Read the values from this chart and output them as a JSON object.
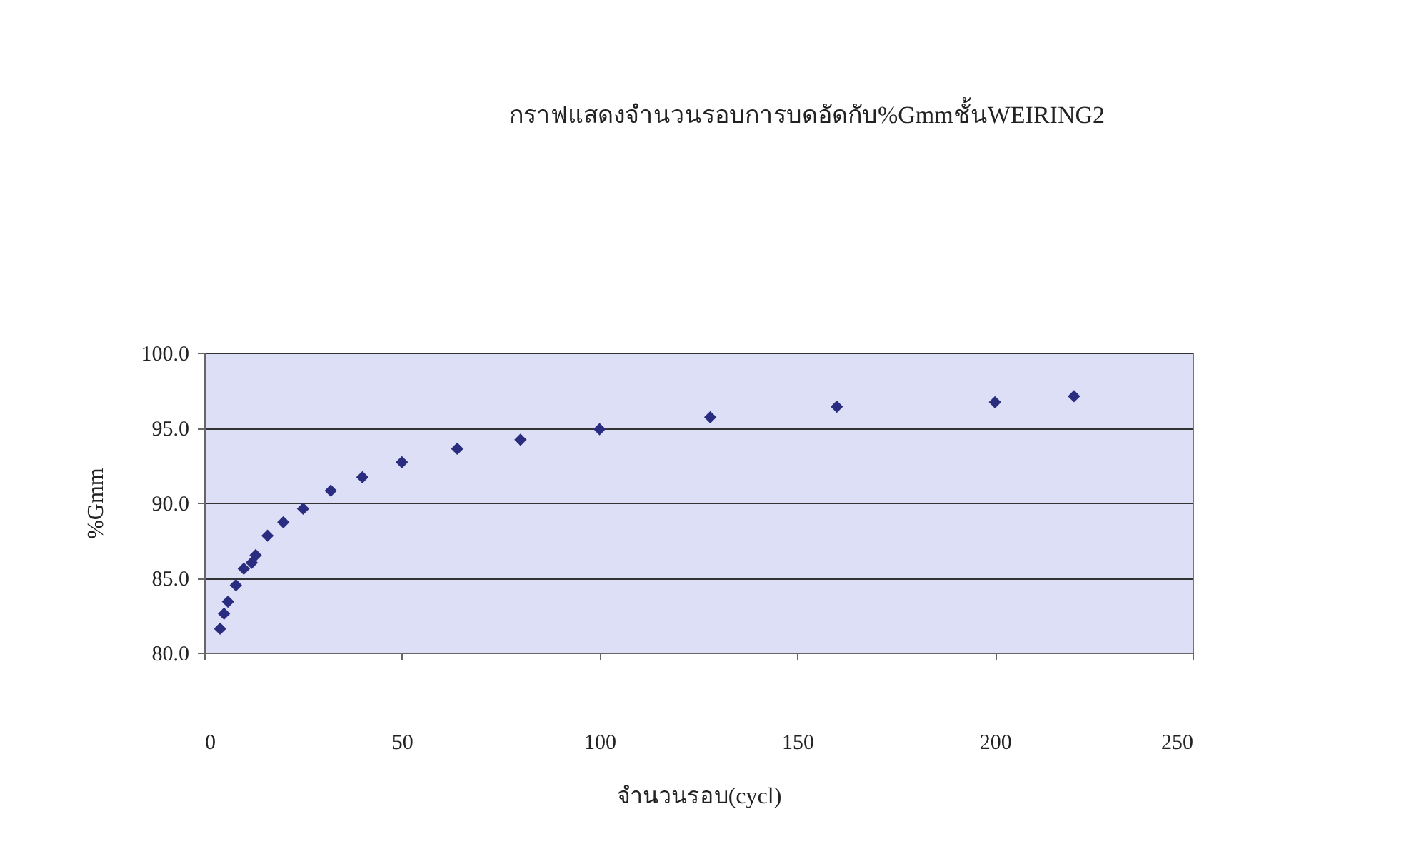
{
  "chart_data": {
    "type": "scatter",
    "title": "กราฟแสดงจำนวนรอบการบดอัดกับ%Gmmชั้นWEIRING2",
    "xlabel": "จำนวนรอบ(cycl)",
    "ylabel": "%Gmm",
    "x": [
      4,
      5,
      6,
      8,
      10,
      12,
      13,
      16,
      20,
      25,
      32,
      40,
      50,
      64,
      80,
      100,
      128,
      160,
      200,
      220
    ],
    "series": [
      {
        "color": "#2a2c80",
        "values": [
          81.6,
          82.6,
          83.4,
          84.5,
          85.6,
          86.0,
          86.5,
          87.8,
          88.7,
          89.6,
          90.8,
          91.7,
          92.7,
          93.6,
          94.2,
          94.9,
          95.7,
          96.4,
          96.7,
          97.1
        ]
      }
    ],
    "xlim": [
      0,
      250
    ],
    "xticks": [
      0,
      50,
      100,
      150,
      200,
      250
    ],
    "ylim": [
      80,
      100
    ],
    "yticks": [
      {
        "value": 80,
        "label": "80.0"
      },
      {
        "value": 85,
        "label": "85.0"
      },
      {
        "value": 90,
        "label": "90.0"
      },
      {
        "value": 95,
        "label": "95.0"
      },
      {
        "value": 100,
        "label": "100.0"
      }
    ],
    "grid": "y",
    "marker": "diamond",
    "legend": false
  }
}
